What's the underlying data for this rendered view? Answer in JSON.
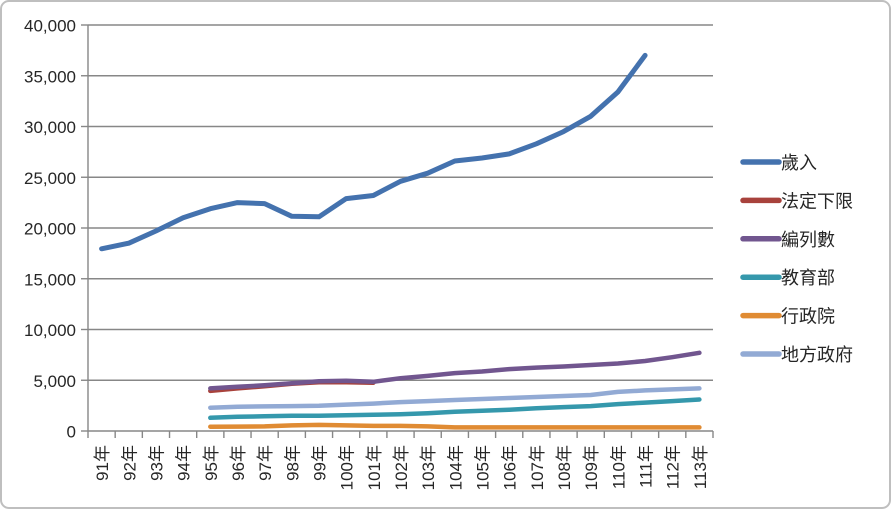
{
  "chart_data": {
    "type": "line",
    "title": "",
    "grid": true,
    "legend_position": "right",
    "categories": [
      "91年",
      "92年",
      "93年",
      "94年",
      "95年",
      "96年",
      "97年",
      "98年",
      "99年",
      "100年",
      "101年",
      "102年",
      "103年",
      "104年",
      "105年",
      "106年",
      "107年",
      "108年",
      "109年",
      "110年",
      "111年",
      "112年",
      "113年"
    ],
    "y_axis": {
      "min": 0,
      "max": 40000,
      "step": 5000,
      "tick_labels_top_to_bottom": [
        "40,000",
        "35,000",
        "30,000",
        "25,000",
        "20,000",
        "15,000",
        "10,000",
        "5,000",
        "0"
      ]
    },
    "colors": {
      "gridline": "#878787",
      "axis": "#878787",
      "text": "#262626",
      "frame_border": "#bfbfbf"
    },
    "series": [
      {
        "name": "歲入",
        "color": "#4472ae",
        "values": [
          17950,
          18500,
          19700,
          21000,
          21900,
          22500,
          22400,
          21150,
          21100,
          22900,
          23200,
          24600,
          25400,
          26600,
          26900,
          27300,
          28300,
          29500,
          31000,
          33400,
          37000,
          null,
          null
        ]
      },
      {
        "name": "法定下限",
        "color": "#a8423c",
        "values": [
          null,
          null,
          null,
          null,
          3950,
          4200,
          4400,
          4650,
          4800,
          4800,
          4750,
          null,
          null,
          null,
          null,
          null,
          null,
          null,
          null,
          null,
          null,
          null,
          null
        ]
      },
      {
        "name": "編列數",
        "color": "#71568f",
        "values": [
          null,
          null,
          null,
          null,
          4200,
          4350,
          4500,
          4700,
          4900,
          4950,
          4850,
          5200,
          5430,
          5700,
          5860,
          6100,
          6250,
          6350,
          6500,
          6650,
          6900,
          7270,
          7700
        ]
      },
      {
        "name": "教育部",
        "color": "#3598ac",
        "values": [
          null,
          null,
          null,
          null,
          1300,
          1400,
          1450,
          1500,
          1500,
          1550,
          1600,
          1650,
          1750,
          1900,
          2000,
          2100,
          2250,
          2350,
          2450,
          2650,
          2800,
          2950,
          3100
        ]
      },
      {
        "name": "行政院",
        "color": "#e08b33",
        "values": [
          null,
          null,
          null,
          null,
          420,
          430,
          450,
          550,
          600,
          550,
          500,
          500,
          450,
          350,
          350,
          350,
          350,
          350,
          350,
          350,
          350,
          350,
          350
        ]
      },
      {
        "name": "地方政府",
        "color": "#92aad4",
        "values": [
          null,
          null,
          null,
          null,
          2300,
          2380,
          2420,
          2450,
          2480,
          2600,
          2700,
          2850,
          2950,
          3050,
          3150,
          3250,
          3350,
          3450,
          3550,
          3850,
          4000,
          4100,
          4200
        ]
      }
    ]
  }
}
